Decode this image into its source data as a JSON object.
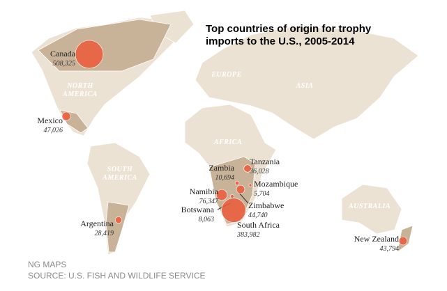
{
  "title": {
    "lines": [
      "Top countries of origin for trophy",
      "imports to the U.S., 2005-2014"
    ]
  },
  "continents": [
    {
      "lines": [
        "NORTH",
        "AMERICA"
      ]
    },
    {
      "lines": [
        "EUROPE"
      ]
    },
    {
      "lines": [
        "ASIA"
      ]
    },
    {
      "lines": [
        "AFRICA"
      ]
    },
    {
      "lines": [
        "SOUTH",
        "AMERICA"
      ]
    },
    {
      "lines": [
        "AUSTRALIA"
      ]
    }
  ],
  "countries": [
    {
      "name": "Canada",
      "value": 508325,
      "value_label": "508,325"
    },
    {
      "name": "Mexico",
      "value": 47026,
      "value_label": "47,026"
    },
    {
      "name": "Argentina",
      "value": 28419,
      "value_label": "28,419"
    },
    {
      "name": "Zambia",
      "value": 10694,
      "value_label": "10,694"
    },
    {
      "name": "Tanzania",
      "value": 36028,
      "value_label": "36,028"
    },
    {
      "name": "Mozambique",
      "value": 5704,
      "value_label": "5,704"
    },
    {
      "name": "Namibia",
      "value": 76347,
      "value_label": "76,347"
    },
    {
      "name": "Zimbabwe",
      "value": 44740,
      "value_label": "44,740"
    },
    {
      "name": "Botswana",
      "value": 8063,
      "value_label": "8,063"
    },
    {
      "name": "South Africa",
      "value": 383982,
      "value_label": "383,982"
    },
    {
      "name": "New Zealand",
      "value": 43794,
      "value_label": "43,794"
    }
  ],
  "footer": {
    "credit": "NG MAPS",
    "source": "SOURCE: U.S. FISH AND WILDLIFE SERVICE"
  }
}
